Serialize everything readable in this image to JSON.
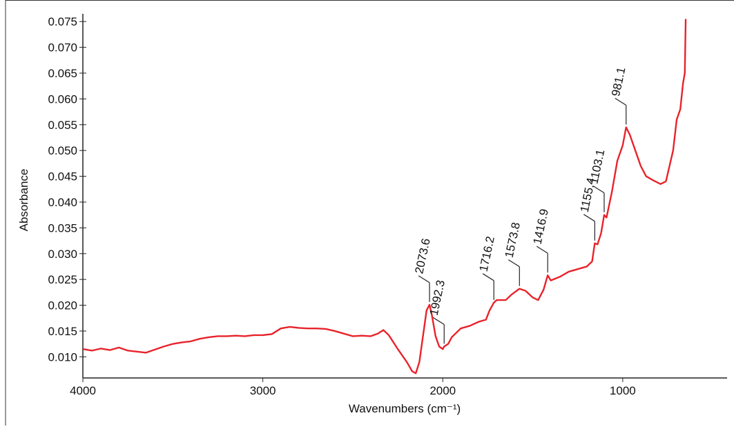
{
  "chart_data": {
    "type": "line",
    "x_label": "Wavenumbers (cm⁻¹)",
    "y_label": "Absorbance",
    "xlim": [
      4000,
      420
    ],
    "ylim": [
      0.0059,
      0.0765
    ],
    "x_reversed": true,
    "xticks": [
      4000,
      3000,
      2000,
      1000
    ],
    "yticks": [
      {
        "value": 0.01,
        "label": "0.010"
      },
      0.015,
      {
        "value": 0.02,
        "label": "0.020"
      },
      0.025,
      {
        "value": 0.03,
        "label": "0.030"
      },
      0.035,
      {
        "value": 0.04,
        "label": "0.040"
      },
      0.045,
      {
        "value": 0.05,
        "label": "0.050"
      },
      0.055,
      {
        "value": 0.06,
        "label": "0.060"
      },
      0.065,
      {
        "value": 0.07,
        "label": "0.070"
      },
      0.075
    ],
    "color": "#e8222a",
    "x": [
      4000,
      3950,
      3900,
      3850,
      3800,
      3750,
      3700,
      3650,
      3600,
      3550,
      3500,
      3450,
      3400,
      3350,
      3300,
      3250,
      3200,
      3150,
      3100,
      3050,
      3000,
      2950,
      2900,
      2850,
      2800,
      2750,
      2700,
      2650,
      2600,
      2550,
      2500,
      2450,
      2400,
      2360,
      2330,
      2300,
      2250,
      2200,
      2170,
      2150,
      2130,
      2110,
      2090,
      2073.6,
      2060,
      2040,
      2020,
      2000,
      1992.3,
      1970,
      1950,
      1900,
      1850,
      1800,
      1760,
      1740,
      1716.2,
      1700,
      1650,
      1620,
      1573.8,
      1540,
      1500,
      1470,
      1440,
      1416.9,
      1400,
      1350,
      1300,
      1250,
      1200,
      1170,
      1155.4,
      1140,
      1120,
      1103.1,
      1090,
      1060,
      1030,
      1000,
      981.1,
      960,
      930,
      900,
      870,
      830,
      790,
      760,
      740,
      720,
      700,
      680,
      665,
      655,
      650
    ],
    "values": [
      0.0115,
      0.0112,
      0.0116,
      0.0113,
      0.0118,
      0.0112,
      0.011,
      0.0108,
      0.0114,
      0.012,
      0.0125,
      0.0128,
      0.013,
      0.0135,
      0.0138,
      0.014,
      0.014,
      0.0141,
      0.014,
      0.0142,
      0.0142,
      0.0144,
      0.0155,
      0.0158,
      0.0156,
      0.0155,
      0.0155,
      0.0154,
      0.015,
      0.0145,
      0.014,
      0.0141,
      0.014,
      0.0145,
      0.0152,
      0.0142,
      0.0115,
      0.009,
      0.0072,
      0.0068,
      0.009,
      0.014,
      0.019,
      0.0201,
      0.018,
      0.014,
      0.012,
      0.0115,
      0.012,
      0.0125,
      0.0138,
      0.0155,
      0.016,
      0.0168,
      0.0172,
      0.019,
      0.0205,
      0.021,
      0.021,
      0.022,
      0.0232,
      0.0228,
      0.0215,
      0.021,
      0.023,
      0.0258,
      0.0248,
      0.0255,
      0.0265,
      0.027,
      0.0275,
      0.0285,
      0.032,
      0.0318,
      0.034,
      0.0375,
      0.037,
      0.042,
      0.048,
      0.051,
      0.0545,
      0.053,
      0.05,
      0.047,
      0.045,
      0.0442,
      0.0435,
      0.044,
      0.047,
      0.05,
      0.056,
      0.058,
      0.063,
      0.065,
      0.0755
    ],
    "peaks": [
      2073.6,
      1992.3,
      1716.2,
      1573.8,
      1416.9,
      1155.4,
      1103.1,
      981.1
    ]
  }
}
